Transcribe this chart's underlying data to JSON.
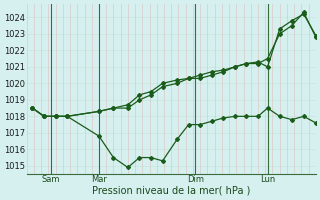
{
  "background_color": "#d6f0f0",
  "grid_color_major": "#b0d8d8",
  "grid_color_minor": "#e8b8b8",
  "line_color": "#1a5c1a",
  "marker_color": "#1a5c1a",
  "xlabel": "Pression niveau de la mer( hPa )",
  "ylim": [
    1014.5,
    1024.8
  ],
  "yticks": [
    1015,
    1016,
    1017,
    1018,
    1019,
    1020,
    1021,
    1022,
    1023,
    1024
  ],
  "xtick_positions": [
    0.083,
    0.25,
    0.583,
    0.833
  ],
  "xtick_labels": [
    "Sam",
    "Mar",
    "Dim",
    "Lun"
  ],
  "vline_positions": [
    0.083,
    0.25,
    0.583,
    0.833
  ],
  "series1_x": [
    0.02,
    0.06,
    0.1,
    0.14,
    0.25,
    0.3,
    0.35,
    0.39,
    0.43,
    0.47,
    0.52,
    0.56,
    0.6,
    0.64,
    0.68,
    0.72,
    0.76,
    0.8,
    0.833,
    0.875,
    0.917,
    0.958,
    1.0
  ],
  "series1_y": [
    1018.5,
    1018.0,
    1018.0,
    1018.0,
    1016.8,
    1015.5,
    1014.9,
    1015.5,
    1015.5,
    1015.3,
    1016.6,
    1017.5,
    1017.5,
    1017.7,
    1017.9,
    1018.0,
    1018.0,
    1018.0,
    1018.5,
    1018.0,
    1017.8,
    1018.0,
    1017.6
  ],
  "series2_x": [
    0.02,
    0.06,
    0.1,
    0.14,
    0.25,
    0.3,
    0.35,
    0.39,
    0.43,
    0.47,
    0.52,
    0.56,
    0.6,
    0.64,
    0.68,
    0.72,
    0.76,
    0.8,
    0.833,
    0.875,
    0.917,
    0.958,
    1.0
  ],
  "series2_y": [
    1018.5,
    1018.0,
    1018.0,
    1018.0,
    1018.3,
    1018.5,
    1018.5,
    1019.0,
    1019.3,
    1019.8,
    1020.0,
    1020.3,
    1020.3,
    1020.5,
    1020.7,
    1021.0,
    1021.2,
    1021.2,
    1021.5,
    1023.0,
    1023.5,
    1024.3,
    1022.8
  ],
  "series3_x": [
    0.02,
    0.06,
    0.1,
    0.14,
    0.25,
    0.3,
    0.35,
    0.39,
    0.43,
    0.47,
    0.52,
    0.56,
    0.6,
    0.64,
    0.68,
    0.72,
    0.76,
    0.8,
    0.833,
    0.875,
    0.917,
    0.958,
    1.0
  ],
  "series3_y": [
    1018.5,
    1018.0,
    1018.0,
    1018.0,
    1018.3,
    1018.5,
    1018.7,
    1019.3,
    1019.5,
    1020.0,
    1020.2,
    1020.3,
    1020.5,
    1020.7,
    1020.8,
    1021.0,
    1021.2,
    1021.3,
    1021.0,
    1023.3,
    1023.8,
    1024.2,
    1022.9
  ]
}
